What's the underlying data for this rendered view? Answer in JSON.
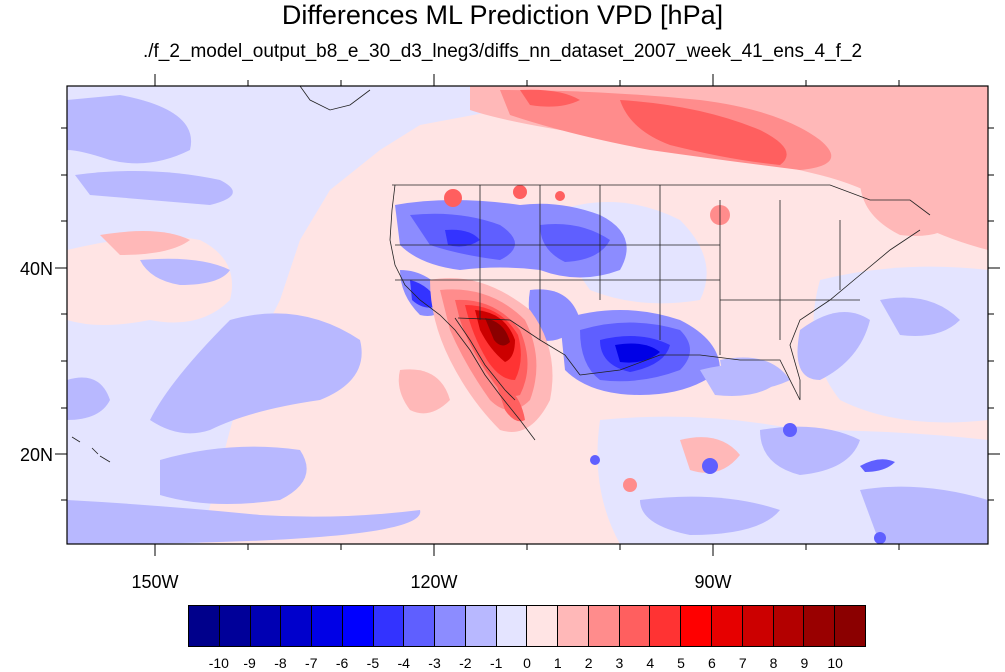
{
  "title": "Differences ML Prediction VPD [hPa]",
  "subtitle": "./f_2_model_output_b8_e_30_d3_lneg3/diffs_nn_dataset_2007_week_41_ens_4_f_2",
  "axes": {
    "lat_labels": [
      "40N",
      "20N"
    ],
    "lon_labels": [
      "150W",
      "120W",
      "90W"
    ]
  },
  "colorbar": {
    "labels": [
      "-10",
      "-9",
      "-8",
      "-7",
      "-6",
      "-5",
      "-4",
      "-3",
      "-2",
      "-1",
      "0",
      "1",
      "2",
      "3",
      "4",
      "5",
      "6",
      "7",
      "8",
      "9",
      "10"
    ],
    "colors": [
      "#00008b",
      "#000099",
      "#0000b3",
      "#0000cc",
      "#0000e6",
      "#0000ff",
      "#3333ff",
      "#5f5fff",
      "#8c8cff",
      "#b8b8ff",
      "#e4e4ff",
      "#ffe4e4",
      "#ffb8b8",
      "#ff8c8c",
      "#ff5f5f",
      "#ff3333",
      "#ff0000",
      "#e60000",
      "#cc0000",
      "#b30000",
      "#990000",
      "#8b0000"
    ]
  },
  "palette": {
    "neutral_blue": "#e4e4ff",
    "neutral_red": "#ffe4e4",
    "light_blue": "#b8b8ff",
    "mid_blue": "#8c8cff",
    "blue": "#5f5fff",
    "strong_blue": "#3333ff",
    "deep_blue": "#0000e6",
    "light_red": "#ffb8b8",
    "mid_red": "#ff8c8c",
    "red": "#ff5f5f",
    "strong_red": "#ff3333",
    "deep_red": "#cc0000",
    "darkest_red": "#8b0000",
    "boundary": "#222222"
  }
}
